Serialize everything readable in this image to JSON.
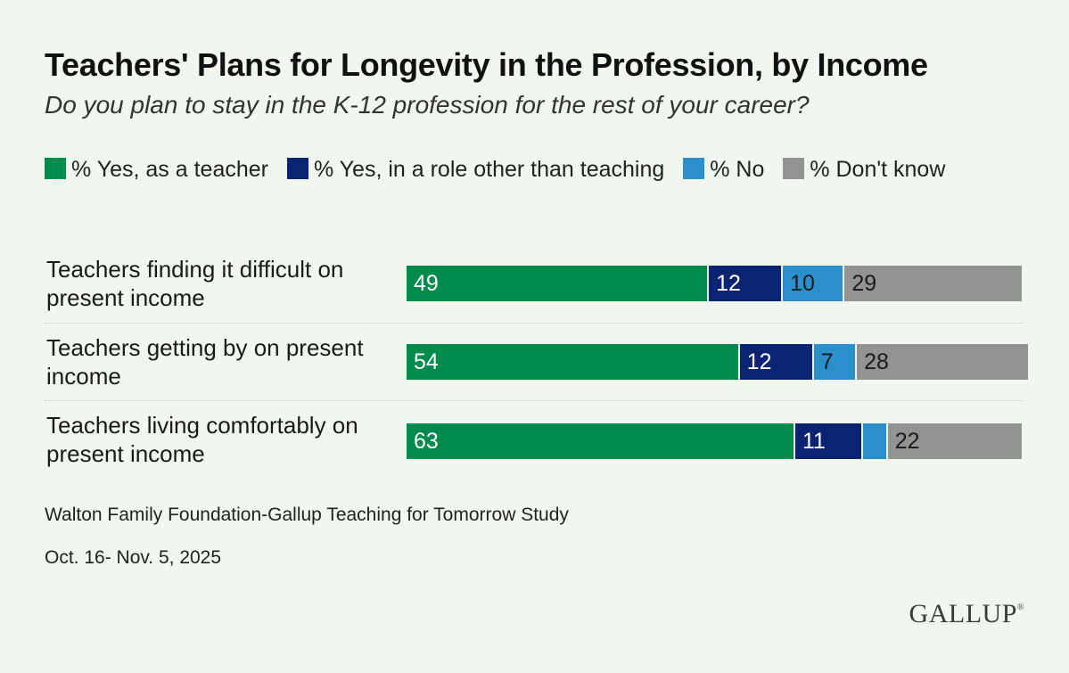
{
  "title": "Teachers' Plans for Longevity in the Profession, by Income",
  "subtitle": "Do you plan to stay in the K-12 profession for the rest of your career?",
  "source": "Walton Family Foundation-Gallup Teaching for Tomorrow Study",
  "date": "Oct. 16- Nov. 5, 2025",
  "logo": "GALLUP",
  "logo_mark": "®",
  "chart_data": {
    "type": "bar",
    "orientation": "horizontal",
    "stacked": true,
    "title": "Teachers' Plans for Longevity in the Profession, by Income",
    "subtitle": "Do you plan to stay in the K-12 profession for the rest of your career?",
    "categories": [
      "Teachers finding it difficult on present income",
      "Teachers getting by on present income",
      "Teachers living comfortably on present income"
    ],
    "series": [
      {
        "name": "% Yes, as a teacher",
        "color": "#008a4b",
        "text_color": "#ffffff",
        "values": [
          49,
          54,
          63
        ],
        "labels": [
          "49",
          "54",
          "63"
        ]
      },
      {
        "name": "% Yes, in a role other than teaching",
        "color": "#0b2471",
        "text_color": "#ffffff",
        "values": [
          12,
          12,
          11
        ],
        "labels": [
          "12",
          "12",
          "11"
        ]
      },
      {
        "name": "% No",
        "color": "#2a8fcb",
        "text_color": "#1a1a1a",
        "values": [
          10,
          7,
          4
        ],
        "labels": [
          "10",
          "7",
          ""
        ]
      },
      {
        "name": "% Don't know",
        "color": "#939393",
        "text_color": "#1a1a1a",
        "values": [
          29,
          28,
          22
        ],
        "labels": [
          "29",
          "28",
          "22"
        ]
      }
    ],
    "legend_position": "top",
    "xlim": [
      0,
      100
    ]
  }
}
